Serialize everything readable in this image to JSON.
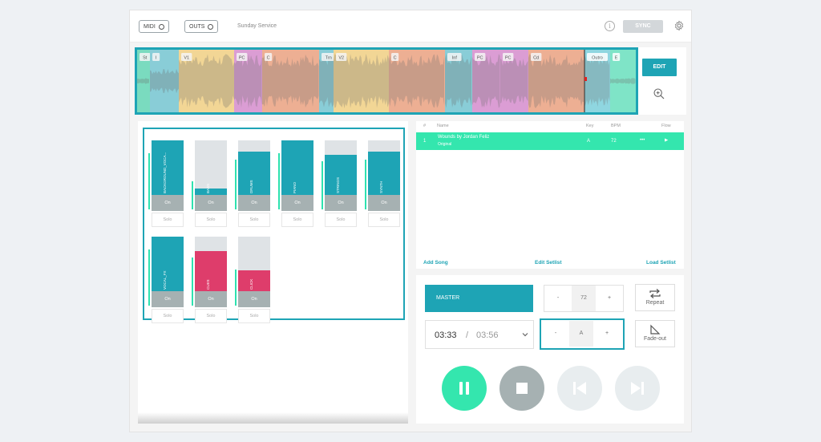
{
  "topbar": {
    "midi_label": "MIDI",
    "outs_label": "OUTS",
    "setlist_name": "Sunday Service",
    "info_glyph": "i",
    "sync_label": "SYNC"
  },
  "waveform": {
    "sections": [
      {
        "label": "St",
        "color": "#7fe4c7"
      },
      {
        "label": "I",
        "color": "#8fd6e0"
      },
      {
        "label": "V1",
        "color": "#fcdf9c"
      },
      {
        "label": "PC",
        "color": "#e4a4dd"
      },
      {
        "label": "C",
        "color": "#f7b79a"
      },
      {
        "label": "Trn",
        "color": "#8fd6e0"
      },
      {
        "label": "V2",
        "color": "#fcdf9c"
      },
      {
        "label": "C",
        "color": "#f7b79a"
      },
      {
        "label": "Inf",
        "color": "#8fd6e0"
      },
      {
        "label": "PC",
        "color": "#e4a4dd"
      },
      {
        "label": "PC",
        "color": "#e4a4dd"
      },
      {
        "label": "Cd",
        "color": "#f7b79a"
      },
      {
        "label": "Outro",
        "color": "#8fd6e0"
      },
      {
        "label": "E",
        "color": "#7fe4c7"
      }
    ]
  },
  "side_controls": {
    "edit_label": "EDIT"
  },
  "tracks": [
    {
      "name": "BACKGROUND_VOCA...",
      "level": 1.0,
      "color": "#1ea4b5",
      "on_label": "On",
      "solo_label": "Solo"
    },
    {
      "name": "BASS",
      "level": 0.12,
      "color": "#1ea4b5",
      "on_label": "On",
      "solo_label": "Solo"
    },
    {
      "name": "DRUMS",
      "level": 0.8,
      "color": "#1ea4b5",
      "on_label": "On",
      "solo_label": "Solo"
    },
    {
      "name": "PIANO",
      "level": 1.0,
      "color": "#1ea4b5",
      "on_label": "On",
      "solo_label": "Solo"
    },
    {
      "name": "STRINGS",
      "level": 0.74,
      "color": "#1ea4b5",
      "on_label": "On",
      "solo_label": "Solo"
    },
    {
      "name": "SYNTH",
      "level": 0.8,
      "color": "#1ea4b5",
      "on_label": "On",
      "solo_label": "Solo"
    },
    {
      "name": "VOCAL_FX",
      "level": 1.0,
      "color": "#1ea4b5",
      "on_label": "On",
      "solo_label": "Solo"
    },
    {
      "name": "CUES",
      "level": 0.74,
      "color": "#de3d6b",
      "on_label": "On",
      "solo_label": "Solo"
    },
    {
      "name": "CLICK",
      "level": 0.38,
      "color": "#de3d6b",
      "on_label": "On",
      "solo_label": "Solo"
    }
  ],
  "setlist": {
    "headers": {
      "num": "#",
      "name": "Name",
      "key": "Key",
      "bpm": "BPM",
      "flow": "Flow"
    },
    "rows": [
      {
        "num": "1",
        "title": "Wounds by Jordan Feliz",
        "version": "Original",
        "key": "A",
        "bpm": "72",
        "more": "•••",
        "play": "▶"
      }
    ],
    "add_song": "Add Song",
    "edit_setlist": "Edit Setlist",
    "load_setlist": "Load Setlist"
  },
  "transport": {
    "master_label": "MASTER",
    "tempo": {
      "minus": "-",
      "value": "72",
      "plus": "+"
    },
    "key": {
      "minus": "-",
      "value": "A",
      "plus": "+"
    },
    "repeat_label": "Repeat",
    "fadeout_label": "Fade-out",
    "current_time": "03:33",
    "separator": "/",
    "total_time": "03:56",
    "colors": {
      "pause": "#34e6ae",
      "stop": "#a6b1b2",
      "skip": "#e8edef"
    }
  }
}
